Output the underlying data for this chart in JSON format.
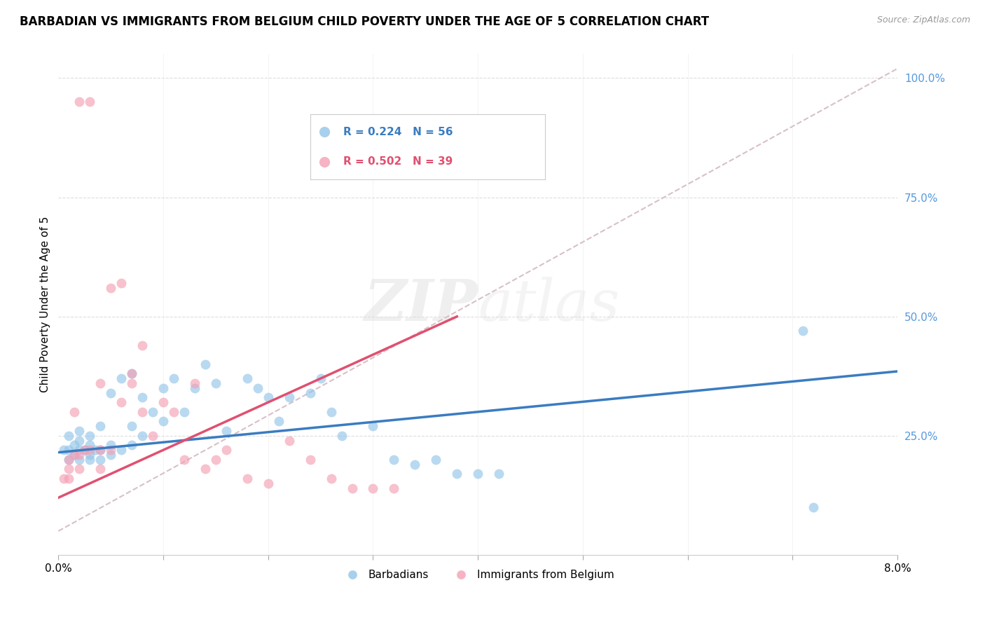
{
  "title": "BARBADIAN VS IMMIGRANTS FROM BELGIUM CHILD POVERTY UNDER THE AGE OF 5 CORRELATION CHART",
  "source": "Source: ZipAtlas.com",
  "ylabel": "Child Poverty Under the Age of 5",
  "legend_blue_r": "0.224",
  "legend_blue_n": "56",
  "legend_pink_r": "0.502",
  "legend_pink_n": "39",
  "legend_label_blue": "Barbadians",
  "legend_label_pink": "Immigrants from Belgium",
  "blue_color": "#92c5e8",
  "pink_color": "#f4a0b5",
  "blue_line_color": "#3a7cc1",
  "pink_line_color": "#e05070",
  "diagonal_color": "#d8c0c8",
  "watermark": "ZIPatlas",
  "xlim": [
    0.0,
    0.08
  ],
  "ylim": [
    0.0,
    1.05
  ],
  "blue_x": [
    0.0005,
    0.001,
    0.001,
    0.001,
    0.0015,
    0.0015,
    0.002,
    0.002,
    0.002,
    0.002,
    0.0025,
    0.003,
    0.003,
    0.003,
    0.003,
    0.0035,
    0.004,
    0.004,
    0.004,
    0.005,
    0.005,
    0.005,
    0.006,
    0.006,
    0.007,
    0.007,
    0.007,
    0.008,
    0.008,
    0.009,
    0.01,
    0.01,
    0.011,
    0.012,
    0.013,
    0.014,
    0.015,
    0.016,
    0.018,
    0.019,
    0.02,
    0.021,
    0.022,
    0.024,
    0.025,
    0.026,
    0.027,
    0.03,
    0.032,
    0.034,
    0.036,
    0.038,
    0.04,
    0.042,
    0.071,
    0.072
  ],
  "blue_y": [
    0.22,
    0.2,
    0.22,
    0.25,
    0.21,
    0.23,
    0.2,
    0.22,
    0.24,
    0.26,
    0.22,
    0.2,
    0.21,
    0.23,
    0.25,
    0.22,
    0.2,
    0.22,
    0.27,
    0.21,
    0.23,
    0.34,
    0.22,
    0.37,
    0.23,
    0.27,
    0.38,
    0.25,
    0.33,
    0.3,
    0.35,
    0.28,
    0.37,
    0.3,
    0.35,
    0.4,
    0.36,
    0.26,
    0.37,
    0.35,
    0.33,
    0.28,
    0.33,
    0.34,
    0.37,
    0.3,
    0.25,
    0.27,
    0.2,
    0.19,
    0.2,
    0.17,
    0.17,
    0.17,
    0.47,
    0.1
  ],
  "pink_x": [
    0.0005,
    0.001,
    0.001,
    0.001,
    0.0015,
    0.0015,
    0.002,
    0.002,
    0.002,
    0.0025,
    0.003,
    0.003,
    0.004,
    0.004,
    0.004,
    0.005,
    0.005,
    0.006,
    0.006,
    0.007,
    0.007,
    0.008,
    0.008,
    0.009,
    0.01,
    0.011,
    0.012,
    0.013,
    0.014,
    0.015,
    0.016,
    0.018,
    0.02,
    0.022,
    0.024,
    0.026,
    0.028,
    0.03,
    0.032
  ],
  "pink_y": [
    0.16,
    0.16,
    0.18,
    0.2,
    0.21,
    0.3,
    0.18,
    0.21,
    0.95,
    0.22,
    0.22,
    0.95,
    0.18,
    0.22,
    0.36,
    0.22,
    0.56,
    0.32,
    0.57,
    0.36,
    0.38,
    0.3,
    0.44,
    0.25,
    0.32,
    0.3,
    0.2,
    0.36,
    0.18,
    0.2,
    0.22,
    0.16,
    0.15,
    0.24,
    0.2,
    0.16,
    0.14,
    0.14,
    0.14
  ]
}
